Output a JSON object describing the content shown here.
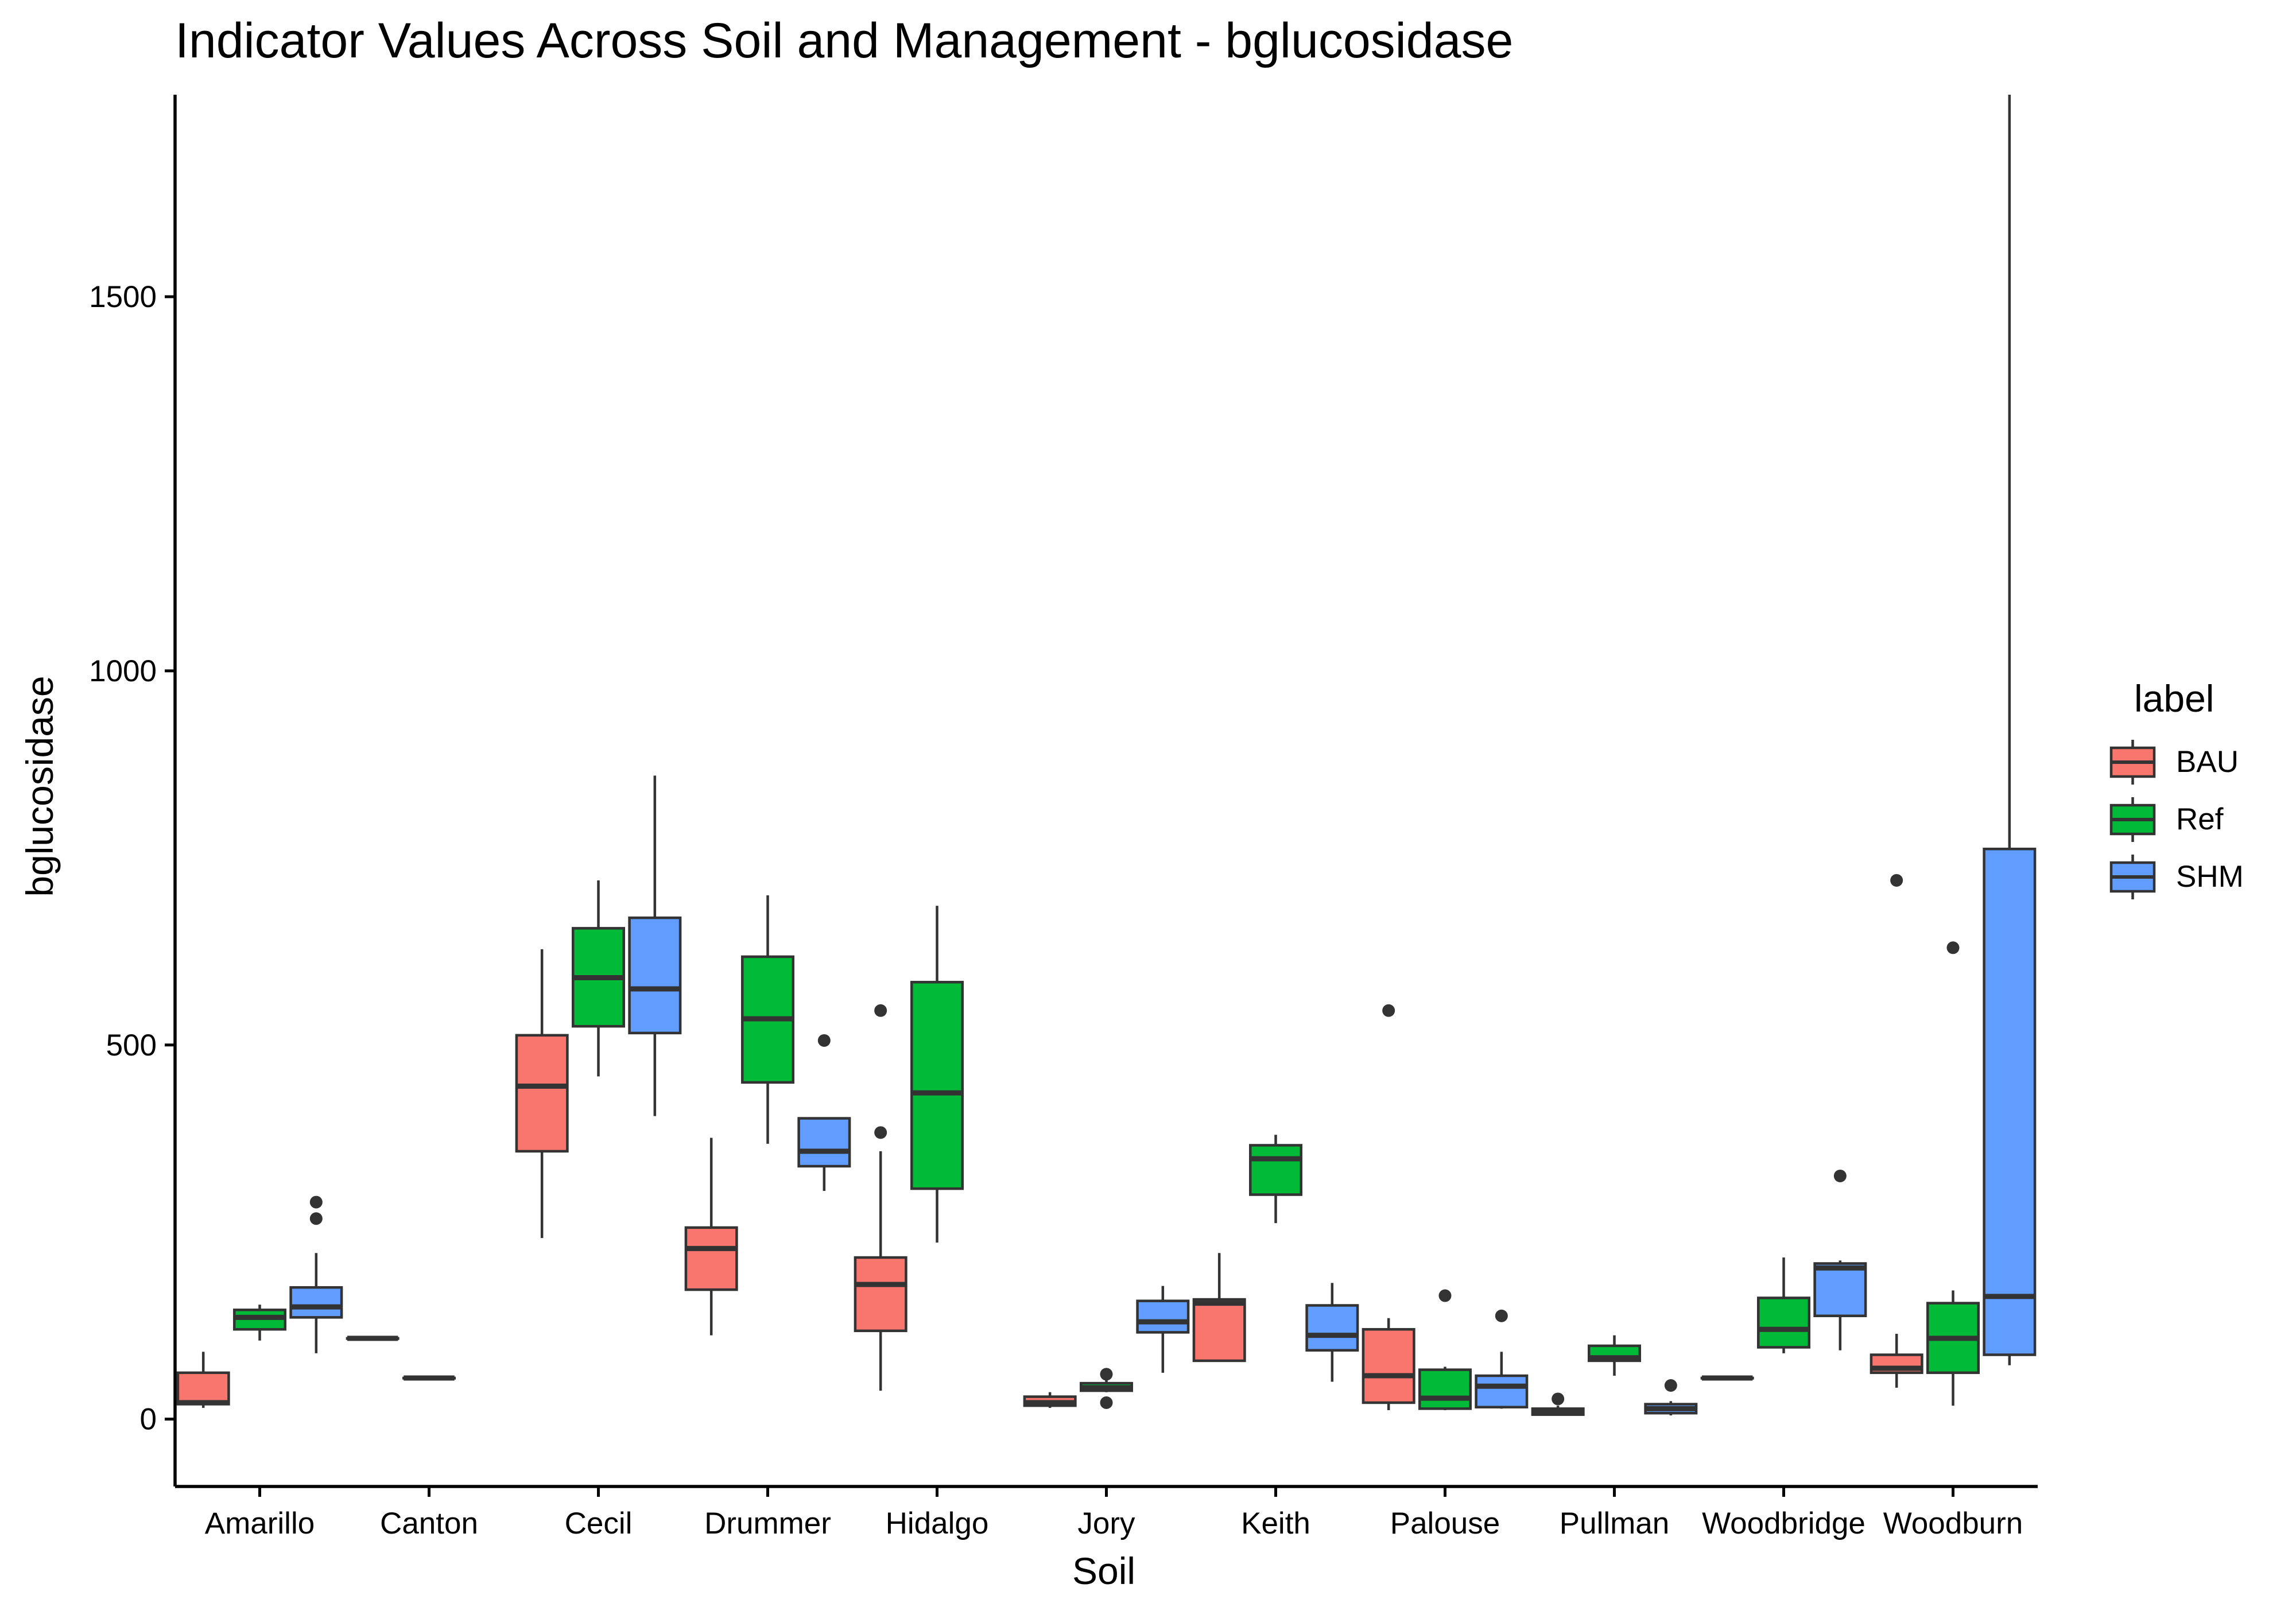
{
  "chart_data": {
    "type": "boxplot",
    "title": "Indicator Values Across Soil and Management - bglucosidase",
    "xlabel": "Soil",
    "ylabel": "bglucosidase",
    "ylim": [
      -90,
      1770
    ],
    "yticks": [
      0,
      500,
      1000,
      1500
    ],
    "grid": false,
    "legend": {
      "title": "label",
      "position": "right"
    },
    "categories": [
      "Amarillo",
      "Canton",
      "Cecil",
      "Drummer",
      "Hidalgo",
      "Jory",
      "Keith",
      "Palouse",
      "Pullman",
      "Woodbridge",
      "Woodburn"
    ],
    "series": [
      {
        "name": "BAU",
        "color": "#F8766D",
        "boxes": [
          {
            "category": "Amarillo",
            "low": 15,
            "q1": 20,
            "median": 22,
            "q3": 62,
            "high": 90,
            "outliers": []
          },
          {
            "category": "Canton",
            "low": 108,
            "q1": 108,
            "median": 108,
            "q3": 108,
            "high": 108,
            "outliers": []
          },
          {
            "category": "Cecil",
            "low": 242,
            "q1": 358,
            "median": 445,
            "q3": 513,
            "high": 628,
            "outliers": []
          },
          {
            "category": "Drummer",
            "low": 112,
            "q1": 173,
            "median": 228,
            "q3": 256,
            "high": 376,
            "outliers": []
          },
          {
            "category": "Hidalgo",
            "low": 38,
            "q1": 118,
            "median": 180,
            "q3": 216,
            "high": 358,
            "outliers": [
              383,
              546
            ]
          },
          {
            "category": "Jory",
            "low": 15,
            "q1": 18,
            "median": 22,
            "q3": 30,
            "high": 36,
            "outliers": []
          },
          {
            "category": "Keith",
            "low": 78,
            "q1": 78,
            "median": 155,
            "q3": 160,
            "high": 222,
            "outliers": []
          },
          {
            "category": "Palouse",
            "low": 12,
            "q1": 22,
            "median": 58,
            "q3": 120,
            "high": 135,
            "outliers": [
              546
            ]
          },
          {
            "category": "Pullman",
            "low": 5,
            "q1": 6,
            "median": 10,
            "q3": 14,
            "high": 18,
            "outliers": [
              27
            ]
          },
          {
            "category": "Woodbridge",
            "low": 55,
            "q1": 55,
            "median": 55,
            "q3": 55,
            "high": 55,
            "outliers": []
          },
          {
            "category": "Woodburn",
            "low": 42,
            "q1": 62,
            "median": 68,
            "q3": 86,
            "high": 114,
            "outliers": [
              720
            ]
          }
        ]
      },
      {
        "name": "Ref",
        "color": "#00BA38",
        "boxes": [
          {
            "category": "Amarillo",
            "low": 105,
            "q1": 120,
            "median": 136,
            "q3": 146,
            "high": 153,
            "outliers": []
          },
          {
            "category": "Canton",
            "low": 55,
            "q1": 55,
            "median": 55,
            "q3": 55,
            "high": 55,
            "outliers": []
          },
          {
            "category": "Cecil",
            "low": 458,
            "q1": 525,
            "median": 590,
            "q3": 656,
            "high": 720,
            "outliers": []
          },
          {
            "category": "Drummer",
            "low": 368,
            "q1": 450,
            "median": 535,
            "q3": 618,
            "high": 700,
            "outliers": []
          },
          {
            "category": "Hidalgo",
            "low": 236,
            "q1": 308,
            "median": 436,
            "q3": 584,
            "high": 686,
            "outliers": []
          },
          {
            "category": "Jory",
            "low": 36,
            "q1": 38,
            "median": 42,
            "q3": 48,
            "high": 52,
            "outliers": [
              22,
              60
            ]
          },
          {
            "category": "Keith",
            "low": 262,
            "q1": 300,
            "median": 348,
            "q3": 366,
            "high": 380,
            "outliers": []
          },
          {
            "category": "Palouse",
            "low": 12,
            "q1": 14,
            "median": 28,
            "q3": 66,
            "high": 70,
            "outliers": [
              165
            ]
          },
          {
            "category": "Pullman",
            "low": 58,
            "q1": 78,
            "median": 82,
            "q3": 98,
            "high": 112,
            "outliers": []
          },
          {
            "category": "Woodbridge",
            "low": 88,
            "q1": 96,
            "median": 120,
            "q3": 162,
            "high": 216,
            "outliers": []
          },
          {
            "category": "Woodburn",
            "low": 18,
            "q1": 62,
            "median": 108,
            "q3": 155,
            "high": 172,
            "outliers": [
              630
            ]
          }
        ]
      },
      {
        "name": "SHM",
        "color": "#619CFF",
        "boxes": [
          {
            "category": "Amarillo",
            "low": 88,
            "q1": 136,
            "median": 150,
            "q3": 176,
            "high": 222,
            "outliers": [
              268,
              290
            ]
          },
          {
            "category": "Cecil",
            "low": 405,
            "q1": 516,
            "median": 575,
            "q3": 670,
            "high": 860,
            "outliers": []
          },
          {
            "category": "Drummer",
            "low": 305,
            "q1": 338,
            "median": 358,
            "q3": 402,
            "high": 402,
            "outliers": [
              506
            ]
          },
          {
            "category": "Jory",
            "low": 62,
            "q1": 116,
            "median": 130,
            "q3": 158,
            "high": 178,
            "outliers": []
          },
          {
            "category": "Keith",
            "low": 50,
            "q1": 92,
            "median": 112,
            "q3": 152,
            "high": 182,
            "outliers": []
          },
          {
            "category": "Palouse",
            "low": 14,
            "q1": 16,
            "median": 44,
            "q3": 58,
            "high": 90,
            "outliers": [
              138
            ]
          },
          {
            "category": "Pullman",
            "low": 5,
            "q1": 8,
            "median": 14,
            "q3": 20,
            "high": 24,
            "outliers": [
              45
            ]
          },
          {
            "category": "Woodbridge",
            "low": 92,
            "q1": 138,
            "median": 202,
            "q3": 208,
            "high": 212,
            "outliers": [
              325
            ]
          },
          {
            "category": "Woodburn",
            "low": 72,
            "q1": 86,
            "median": 164,
            "q3": 762,
            "high": 1770,
            "outliers": []
          }
        ]
      }
    ]
  }
}
